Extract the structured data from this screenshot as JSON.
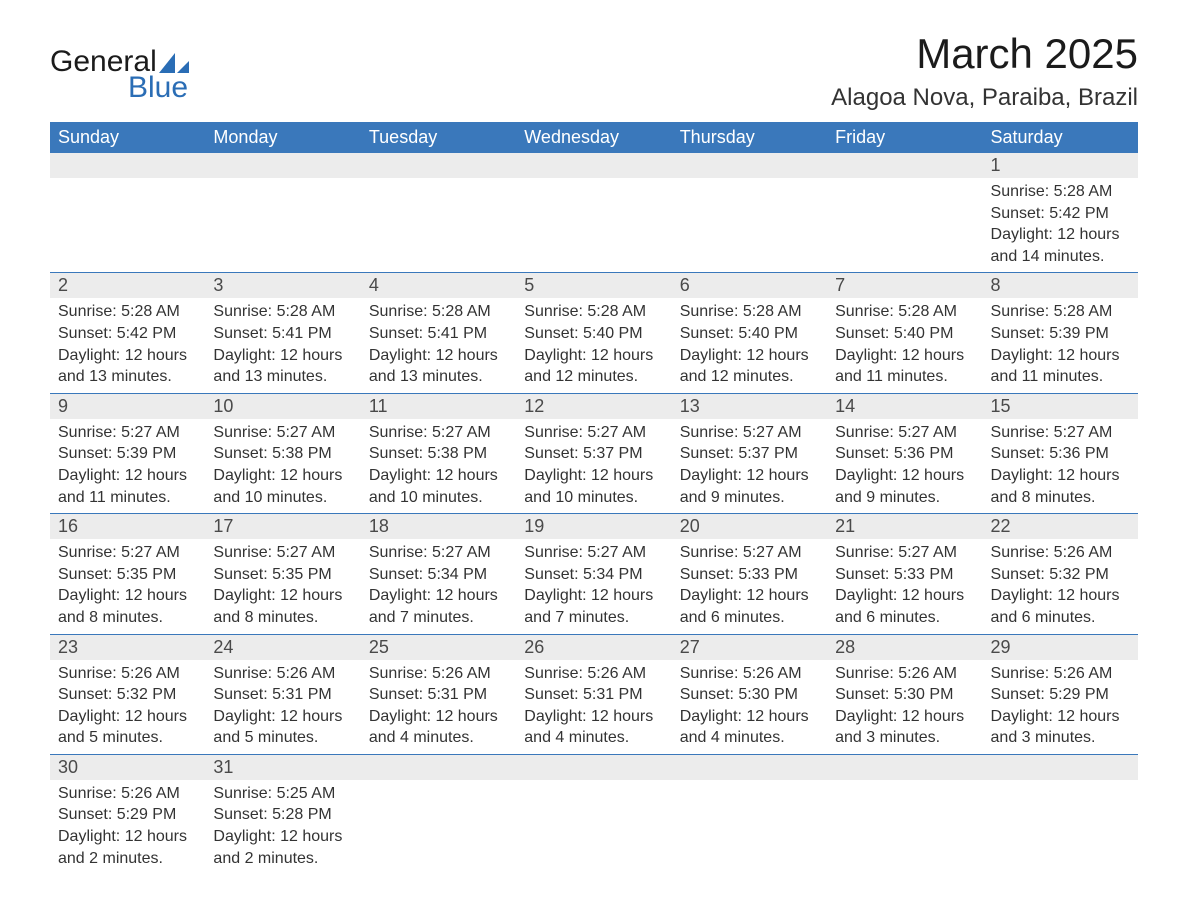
{
  "logo": {
    "word1": "General",
    "word2": "Blue",
    "shape_color": "#2a6db5"
  },
  "title": "March 2025",
  "location": "Alagoa Nova, Paraiba, Brazil",
  "colors": {
    "header_bg": "#3a78bb",
    "header_text": "#ffffff",
    "daynum_bg": "#ececec",
    "border": "#3a78bb",
    "text": "#333333",
    "title": "#1b1b1b"
  },
  "typography": {
    "title_fontsize": 42,
    "location_fontsize": 24,
    "header_fontsize": 18,
    "daynum_fontsize": 18,
    "body_fontsize": 16
  },
  "day_headers": [
    "Sunday",
    "Monday",
    "Tuesday",
    "Wednesday",
    "Thursday",
    "Friday",
    "Saturday"
  ],
  "weeks": [
    [
      {
        "empty": true
      },
      {
        "empty": true
      },
      {
        "empty": true
      },
      {
        "empty": true
      },
      {
        "empty": true
      },
      {
        "empty": true
      },
      {
        "n": "1",
        "sunrise": "Sunrise: 5:28 AM",
        "sunset": "Sunset: 5:42 PM",
        "daylight1": "Daylight: 12 hours",
        "daylight2": "and 14 minutes."
      }
    ],
    [
      {
        "n": "2",
        "sunrise": "Sunrise: 5:28 AM",
        "sunset": "Sunset: 5:42 PM",
        "daylight1": "Daylight: 12 hours",
        "daylight2": "and 13 minutes."
      },
      {
        "n": "3",
        "sunrise": "Sunrise: 5:28 AM",
        "sunset": "Sunset: 5:41 PM",
        "daylight1": "Daylight: 12 hours",
        "daylight2": "and 13 minutes."
      },
      {
        "n": "4",
        "sunrise": "Sunrise: 5:28 AM",
        "sunset": "Sunset: 5:41 PM",
        "daylight1": "Daylight: 12 hours",
        "daylight2": "and 13 minutes."
      },
      {
        "n": "5",
        "sunrise": "Sunrise: 5:28 AM",
        "sunset": "Sunset: 5:40 PM",
        "daylight1": "Daylight: 12 hours",
        "daylight2": "and 12 minutes."
      },
      {
        "n": "6",
        "sunrise": "Sunrise: 5:28 AM",
        "sunset": "Sunset: 5:40 PM",
        "daylight1": "Daylight: 12 hours",
        "daylight2": "and 12 minutes."
      },
      {
        "n": "7",
        "sunrise": "Sunrise: 5:28 AM",
        "sunset": "Sunset: 5:40 PM",
        "daylight1": "Daylight: 12 hours",
        "daylight2": "and 11 minutes."
      },
      {
        "n": "8",
        "sunrise": "Sunrise: 5:28 AM",
        "sunset": "Sunset: 5:39 PM",
        "daylight1": "Daylight: 12 hours",
        "daylight2": "and 11 minutes."
      }
    ],
    [
      {
        "n": "9",
        "sunrise": "Sunrise: 5:27 AM",
        "sunset": "Sunset: 5:39 PM",
        "daylight1": "Daylight: 12 hours",
        "daylight2": "and 11 minutes."
      },
      {
        "n": "10",
        "sunrise": "Sunrise: 5:27 AM",
        "sunset": "Sunset: 5:38 PM",
        "daylight1": "Daylight: 12 hours",
        "daylight2": "and 10 minutes."
      },
      {
        "n": "11",
        "sunrise": "Sunrise: 5:27 AM",
        "sunset": "Sunset: 5:38 PM",
        "daylight1": "Daylight: 12 hours",
        "daylight2": "and 10 minutes."
      },
      {
        "n": "12",
        "sunrise": "Sunrise: 5:27 AM",
        "sunset": "Sunset: 5:37 PM",
        "daylight1": "Daylight: 12 hours",
        "daylight2": "and 10 minutes."
      },
      {
        "n": "13",
        "sunrise": "Sunrise: 5:27 AM",
        "sunset": "Sunset: 5:37 PM",
        "daylight1": "Daylight: 12 hours",
        "daylight2": "and 9 minutes."
      },
      {
        "n": "14",
        "sunrise": "Sunrise: 5:27 AM",
        "sunset": "Sunset: 5:36 PM",
        "daylight1": "Daylight: 12 hours",
        "daylight2": "and 9 minutes."
      },
      {
        "n": "15",
        "sunrise": "Sunrise: 5:27 AM",
        "sunset": "Sunset: 5:36 PM",
        "daylight1": "Daylight: 12 hours",
        "daylight2": "and 8 minutes."
      }
    ],
    [
      {
        "n": "16",
        "sunrise": "Sunrise: 5:27 AM",
        "sunset": "Sunset: 5:35 PM",
        "daylight1": "Daylight: 12 hours",
        "daylight2": "and 8 minutes."
      },
      {
        "n": "17",
        "sunrise": "Sunrise: 5:27 AM",
        "sunset": "Sunset: 5:35 PM",
        "daylight1": "Daylight: 12 hours",
        "daylight2": "and 8 minutes."
      },
      {
        "n": "18",
        "sunrise": "Sunrise: 5:27 AM",
        "sunset": "Sunset: 5:34 PM",
        "daylight1": "Daylight: 12 hours",
        "daylight2": "and 7 minutes."
      },
      {
        "n": "19",
        "sunrise": "Sunrise: 5:27 AM",
        "sunset": "Sunset: 5:34 PM",
        "daylight1": "Daylight: 12 hours",
        "daylight2": "and 7 minutes."
      },
      {
        "n": "20",
        "sunrise": "Sunrise: 5:27 AM",
        "sunset": "Sunset: 5:33 PM",
        "daylight1": "Daylight: 12 hours",
        "daylight2": "and 6 minutes."
      },
      {
        "n": "21",
        "sunrise": "Sunrise: 5:27 AM",
        "sunset": "Sunset: 5:33 PM",
        "daylight1": "Daylight: 12 hours",
        "daylight2": "and 6 minutes."
      },
      {
        "n": "22",
        "sunrise": "Sunrise: 5:26 AM",
        "sunset": "Sunset: 5:32 PM",
        "daylight1": "Daylight: 12 hours",
        "daylight2": "and 6 minutes."
      }
    ],
    [
      {
        "n": "23",
        "sunrise": "Sunrise: 5:26 AM",
        "sunset": "Sunset: 5:32 PM",
        "daylight1": "Daylight: 12 hours",
        "daylight2": "and 5 minutes."
      },
      {
        "n": "24",
        "sunrise": "Sunrise: 5:26 AM",
        "sunset": "Sunset: 5:31 PM",
        "daylight1": "Daylight: 12 hours",
        "daylight2": "and 5 minutes."
      },
      {
        "n": "25",
        "sunrise": "Sunrise: 5:26 AM",
        "sunset": "Sunset: 5:31 PM",
        "daylight1": "Daylight: 12 hours",
        "daylight2": "and 4 minutes."
      },
      {
        "n": "26",
        "sunrise": "Sunrise: 5:26 AM",
        "sunset": "Sunset: 5:31 PM",
        "daylight1": "Daylight: 12 hours",
        "daylight2": "and 4 minutes."
      },
      {
        "n": "27",
        "sunrise": "Sunrise: 5:26 AM",
        "sunset": "Sunset: 5:30 PM",
        "daylight1": "Daylight: 12 hours",
        "daylight2": "and 4 minutes."
      },
      {
        "n": "28",
        "sunrise": "Sunrise: 5:26 AM",
        "sunset": "Sunset: 5:30 PM",
        "daylight1": "Daylight: 12 hours",
        "daylight2": "and 3 minutes."
      },
      {
        "n": "29",
        "sunrise": "Sunrise: 5:26 AM",
        "sunset": "Sunset: 5:29 PM",
        "daylight1": "Daylight: 12 hours",
        "daylight2": "and 3 minutes."
      }
    ],
    [
      {
        "n": "30",
        "sunrise": "Sunrise: 5:26 AM",
        "sunset": "Sunset: 5:29 PM",
        "daylight1": "Daylight: 12 hours",
        "daylight2": "and 2 minutes."
      },
      {
        "n": "31",
        "sunrise": "Sunrise: 5:25 AM",
        "sunset": "Sunset: 5:28 PM",
        "daylight1": "Daylight: 12 hours",
        "daylight2": "and 2 minutes."
      },
      {
        "empty": true
      },
      {
        "empty": true
      },
      {
        "empty": true
      },
      {
        "empty": true
      },
      {
        "empty": true
      }
    ]
  ]
}
